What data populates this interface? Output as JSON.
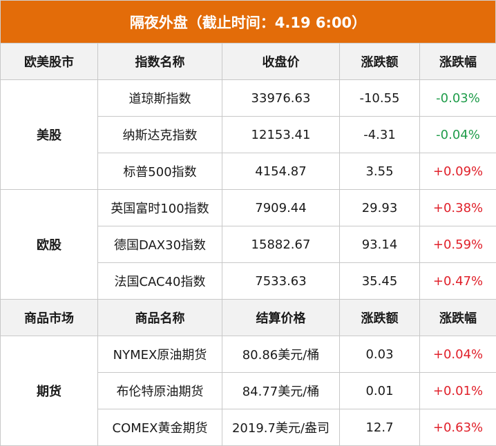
{
  "title": "隔夜外盘（截止时间：4.19 6:00）",
  "sections": [
    {
      "headers": [
        "欧美股市",
        "指数名称",
        "收盘价",
        "涨跌额",
        "涨跌幅"
      ],
      "groups": [
        {
          "market": "美股",
          "rows": [
            {
              "name": "道琼斯指数",
              "price": "33976.63",
              "change": "-10.55",
              "pct": "-0.03%"
            },
            {
              "name": "纳斯达克指数",
              "price": "12153.41",
              "change": "-4.31",
              "pct": "-0.04%"
            },
            {
              "name": "标普500指数",
              "price": "4154.87",
              "change": "3.55",
              "pct": "+0.09%"
            }
          ]
        },
        {
          "market": "欧股",
          "rows": [
            {
              "name": "英国富时100指数",
              "price": "7909.44",
              "change": "29.93",
              "pct": "+0.38%"
            },
            {
              "name": "德国DAX30指数",
              "price": "15882.67",
              "change": "93.14",
              "pct": "+0.59%"
            },
            {
              "name": "法国CAC40指数",
              "price": "7533.63",
              "change": "35.45",
              "pct": "+0.47%"
            }
          ]
        }
      ]
    },
    {
      "headers": [
        "商品市场",
        "商品名称",
        "结算价格",
        "涨跌额",
        "涨跌幅"
      ],
      "groups": [
        {
          "market": "期货",
          "rows": [
            {
              "name": "NYMEX原油期货",
              "price": "80.86美元/桶",
              "change": "0.03",
              "pct": "+0.04%"
            },
            {
              "name": "布伦特原油期货",
              "price": "84.77美元/桶",
              "change": "0.01",
              "pct": "+0.01%"
            },
            {
              "name": "COMEX黄金期货",
              "price": "2019.7美元/盎司",
              "change": "12.7",
              "pct": "+0.63%"
            }
          ]
        }
      ]
    }
  ],
  "colors": {
    "header_bg": "#e36c09",
    "negative": "#1f9c4a",
    "positive": "#e0202a"
  }
}
